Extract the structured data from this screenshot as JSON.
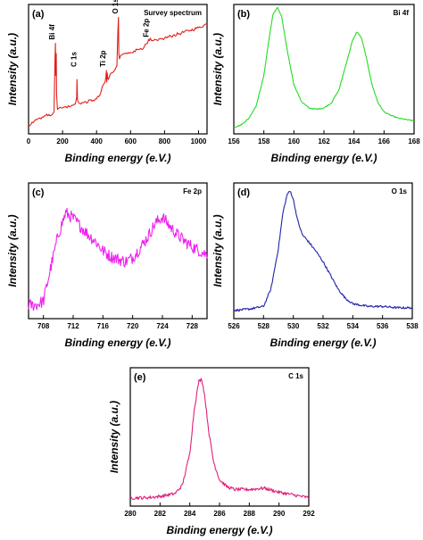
{
  "chart_data": [
    {
      "id": "a",
      "type": "line",
      "panel_label": "(a)",
      "title": "Survey spectrum",
      "xlabel": "Binding energy (e.V.)",
      "ylabel": "Intensity (a.u.)",
      "xlim": [
        0,
        1050
      ],
      "ylim": [
        0,
        1.0
      ],
      "xticks": [
        0,
        200,
        400,
        600,
        800,
        1000
      ],
      "color": "#e0201c",
      "series": [
        {
          "x": [
            0,
            20,
            40,
            60,
            80,
            100,
            120,
            140,
            150,
            155,
            158,
            160,
            163,
            165,
            170,
            180,
            200,
            220,
            240,
            260,
            275,
            283,
            285,
            288,
            295,
            320,
            350,
            380,
            400,
            420,
            440,
            450,
            455,
            458,
            460,
            463,
            466,
            470,
            480,
            500,
            510,
            520,
            525,
            529,
            531,
            535,
            540,
            560,
            580,
            600,
            620,
            640,
            660,
            680,
            700,
            706,
            711,
            716,
            724,
            730,
            760,
            800,
            850,
            900,
            950,
            1000,
            1050
          ],
          "y": [
            0.06,
            0.09,
            0.11,
            0.12,
            0.13,
            0.14,
            0.15,
            0.15,
            0.17,
            0.55,
            0.7,
            0.45,
            0.62,
            0.3,
            0.19,
            0.2,
            0.2,
            0.21,
            0.21,
            0.22,
            0.23,
            0.28,
            0.42,
            0.26,
            0.24,
            0.24,
            0.25,
            0.26,
            0.27,
            0.3,
            0.38,
            0.4,
            0.44,
            0.49,
            0.4,
            0.47,
            0.43,
            0.42,
            0.46,
            0.48,
            0.5,
            0.53,
            0.78,
            0.9,
            0.62,
            0.58,
            0.6,
            0.62,
            0.62,
            0.63,
            0.64,
            0.65,
            0.66,
            0.67,
            0.7,
            0.73,
            0.72,
            0.74,
            0.72,
            0.72,
            0.72,
            0.74,
            0.76,
            0.78,
            0.8,
            0.82,
            0.85
          ]
        }
      ],
      "annotations": [
        {
          "text": "Bi 4f",
          "x": 158
        },
        {
          "text": "C 1s",
          "x": 285
        },
        {
          "text": "Ti 2p",
          "x": 458
        },
        {
          "text": "O 1s",
          "x": 529
        },
        {
          "text": "Fe 2p",
          "x": 711
        }
      ]
    },
    {
      "id": "b",
      "type": "line",
      "panel_label": "(b)",
      "title": "Bi 4f",
      "xlabel": "Binding energy (e.V.)",
      "ylabel": "Intensity (a.u.)",
      "xlim": [
        156,
        168
      ],
      "ylim": [
        0,
        1.0
      ],
      "xticks": [
        156,
        158,
        160,
        162,
        164,
        166,
        168
      ],
      "color": "#22dd22",
      "series": [
        {
          "x": [
            156.0,
            156.5,
            157.0,
            157.5,
            158.0,
            158.3,
            158.6,
            158.9,
            159.2,
            159.5,
            160.0,
            160.5,
            161.0,
            161.5,
            162.0,
            162.5,
            163.0,
            163.5,
            163.9,
            164.2,
            164.5,
            164.8,
            165.2,
            165.6,
            166.0,
            166.5,
            167.0,
            167.5,
            168.0
          ],
          "y": [
            0.05,
            0.07,
            0.12,
            0.22,
            0.45,
            0.7,
            0.92,
            0.98,
            0.9,
            0.68,
            0.38,
            0.25,
            0.2,
            0.19,
            0.2,
            0.24,
            0.34,
            0.55,
            0.72,
            0.79,
            0.74,
            0.6,
            0.38,
            0.24,
            0.17,
            0.14,
            0.12,
            0.11,
            0.1
          ]
        }
      ]
    },
    {
      "id": "c",
      "type": "line",
      "panel_label": "(c)",
      "title": "Fe 2p",
      "xlabel": "Binding energy (e.V.)",
      "ylabel": "Intensity (a.u.)",
      "xlim": [
        706,
        730
      ],
      "ylim": [
        0,
        1.0
      ],
      "xticks": [
        708,
        712,
        716,
        720,
        724,
        728
      ],
      "color": "#ee22ee",
      "series": [
        {
          "x": [
            706,
            707,
            708,
            709,
            710,
            711,
            712,
            713,
            714,
            715,
            716,
            717,
            718,
            719,
            720,
            721,
            722,
            723,
            724,
            725,
            726,
            727,
            728,
            729,
            730
          ],
          "y": [
            0.1,
            0.1,
            0.13,
            0.38,
            0.62,
            0.78,
            0.74,
            0.68,
            0.62,
            0.57,
            0.5,
            0.46,
            0.44,
            0.42,
            0.45,
            0.52,
            0.6,
            0.7,
            0.75,
            0.68,
            0.62,
            0.57,
            0.53,
            0.5,
            0.47
          ]
        }
      ]
    },
    {
      "id": "d",
      "type": "line",
      "panel_label": "(d)",
      "title": "O 1s",
      "xlabel": "Binding energy (e.V.)",
      "ylabel": "Intensity (a.u.)",
      "xlim": [
        526,
        538
      ],
      "ylim": [
        0,
        1.0
      ],
      "xticks": [
        526,
        528,
        530,
        532,
        534,
        536,
        538
      ],
      "color": "#2222aa",
      "series": [
        {
          "x": [
            526.0,
            527.0,
            528.0,
            528.5,
            529.0,
            529.3,
            529.6,
            529.8,
            530.0,
            530.3,
            530.6,
            531.0,
            531.5,
            532.0,
            532.5,
            533.0,
            533.5,
            534.0,
            535.0,
            536.0,
            537.0,
            538.0
          ],
          "y": [
            0.06,
            0.07,
            0.09,
            0.22,
            0.52,
            0.78,
            0.92,
            0.94,
            0.88,
            0.72,
            0.62,
            0.57,
            0.5,
            0.42,
            0.32,
            0.22,
            0.15,
            0.11,
            0.09,
            0.09,
            0.08,
            0.08
          ]
        }
      ]
    },
    {
      "id": "e",
      "type": "line",
      "panel_label": "(e)",
      "title": "C 1s",
      "xlabel": "Binding energy (e.V.)",
      "ylabel": "Intensity (a.u.)",
      "xlim": [
        280,
        292
      ],
      "ylim": [
        0,
        1.0
      ],
      "xticks": [
        280,
        282,
        284,
        286,
        288,
        290,
        292
      ],
      "color": "#e0207a",
      "series": [
        {
          "x": [
            280.0,
            281.0,
            282.0,
            283.0,
            283.5,
            284.0,
            284.3,
            284.6,
            284.8,
            285.0,
            285.3,
            285.6,
            286.0,
            286.5,
            287.0,
            288.0,
            289.0,
            290.0,
            291.0,
            292.0
          ],
          "y": [
            0.06,
            0.06,
            0.07,
            0.09,
            0.15,
            0.38,
            0.7,
            0.9,
            0.92,
            0.8,
            0.52,
            0.32,
            0.19,
            0.14,
            0.12,
            0.12,
            0.13,
            0.1,
            0.08,
            0.06
          ]
        }
      ]
    }
  ]
}
